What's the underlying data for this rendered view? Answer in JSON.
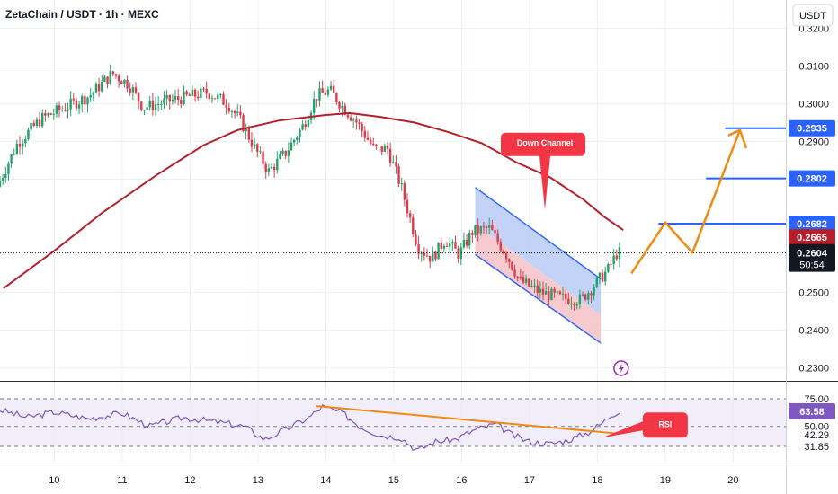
{
  "header": {
    "title": "ZetaChain / USDT · 1h · MEXC",
    "currency_button": "USDT"
  },
  "colors": {
    "background": "#ffffff",
    "grid": "#e7f3ec",
    "candle_up": "#22a26a",
    "candle_down": "#e0394a",
    "moving_average": "#b51f2b",
    "rsi_line": "#7e57c2",
    "rsi_band_fill": "#ede7f6",
    "target_line": "#2962ff",
    "annotation_orange": "#f08a12",
    "callout_red": "#f23645",
    "channel_blue_fill": "#b3c8f5",
    "channel_red_fill": "#f4c1c6"
  },
  "chart_data": {
    "type": "candlestick",
    "symbol": "ZetaChain / USDT",
    "interval": "1h",
    "exchange": "MEXC",
    "x_ticks": [
      "10",
      "11",
      "12",
      "13",
      "14",
      "15",
      "16",
      "17",
      "18",
      "19",
      "20"
    ],
    "y_ticks": [
      "0.3200",
      "0.3100",
      "0.3000",
      "0.2900",
      "0.2800",
      "0.2500",
      "0.2400",
      "0.2300"
    ],
    "ylim": [
      0.2265,
      0.3275
    ],
    "last_price": "0.2604",
    "countdown": "50:54",
    "ma_price": "0.2665",
    "close_path_approx": [
      {
        "x": 9.2,
        "y": 0.278
      },
      {
        "x": 9.5,
        "y": 0.2895
      },
      {
        "x": 9.85,
        "y": 0.296
      },
      {
        "x": 10.2,
        "y": 0.299
      },
      {
        "x": 10.55,
        "y": 0.302
      },
      {
        "x": 10.9,
        "y": 0.308
      },
      {
        "x": 11.15,
        "y": 0.305
      },
      {
        "x": 11.35,
        "y": 0.299
      },
      {
        "x": 11.8,
        "y": 0.301
      },
      {
        "x": 12.3,
        "y": 0.303
      },
      {
        "x": 12.6,
        "y": 0.3
      },
      {
        "x": 12.8,
        "y": 0.295
      },
      {
        "x": 13.0,
        "y": 0.288
      },
      {
        "x": 13.2,
        "y": 0.282
      },
      {
        "x": 13.45,
        "y": 0.287
      },
      {
        "x": 13.7,
        "y": 0.294
      },
      {
        "x": 13.9,
        "y": 0.302
      },
      {
        "x": 14.1,
        "y": 0.3035
      },
      {
        "x": 14.3,
        "y": 0.299
      },
      {
        "x": 14.5,
        "y": 0.295
      },
      {
        "x": 14.75,
        "y": 0.288
      },
      {
        "x": 14.95,
        "y": 0.288
      },
      {
        "x": 15.15,
        "y": 0.278
      },
      {
        "x": 15.4,
        "y": 0.262
      },
      {
        "x": 15.6,
        "y": 0.259
      },
      {
        "x": 15.8,
        "y": 0.264
      },
      {
        "x": 16.0,
        "y": 0.26
      },
      {
        "x": 16.2,
        "y": 0.266
      },
      {
        "x": 16.45,
        "y": 0.267
      },
      {
        "x": 16.7,
        "y": 0.26
      },
      {
        "x": 16.9,
        "y": 0.253
      },
      {
        "x": 17.2,
        "y": 0.25
      },
      {
        "x": 17.5,
        "y": 0.2485
      },
      {
        "x": 17.8,
        "y": 0.248
      },
      {
        "x": 18.0,
        "y": 0.252
      },
      {
        "x": 18.2,
        "y": 0.256
      },
      {
        "x": 18.33,
        "y": 0.2604
      }
    ],
    "moving_average_approx": [
      {
        "x": 9.25,
        "y": 0.251
      },
      {
        "x": 10.0,
        "y": 0.261
      },
      {
        "x": 10.7,
        "y": 0.271
      },
      {
        "x": 11.5,
        "y": 0.281
      },
      {
        "x": 12.2,
        "y": 0.289
      },
      {
        "x": 12.7,
        "y": 0.293
      },
      {
        "x": 13.3,
        "y": 0.2955
      },
      {
        "x": 14.0,
        "y": 0.297
      },
      {
        "x": 14.35,
        "y": 0.2975
      },
      {
        "x": 14.8,
        "y": 0.2965
      },
      {
        "x": 15.3,
        "y": 0.295
      },
      {
        "x": 15.8,
        "y": 0.2925
      },
      {
        "x": 16.3,
        "y": 0.2895
      },
      {
        "x": 16.8,
        "y": 0.2845
      },
      {
        "x": 17.3,
        "y": 0.2805
      },
      {
        "x": 17.8,
        "y": 0.2745
      },
      {
        "x": 18.1,
        "y": 0.27
      },
      {
        "x": 18.38,
        "y": 0.2665
      }
    ],
    "target_levels": [
      {
        "label": "0.2935",
        "price": 0.2935,
        "x_start": 19.88
      },
      {
        "label": "0.2802",
        "price": 0.2802,
        "x_start": 19.6
      },
      {
        "label": "0.2682",
        "price": 0.2682,
        "x_start": 18.9
      }
    ],
    "down_channel": {
      "label": "Down Channel",
      "upper": [
        [
          16.2,
          0.2778
        ],
        [
          18.05,
          0.2535
        ]
      ],
      "lower": [
        [
          16.2,
          0.26
        ],
        [
          18.05,
          0.2365
        ]
      ],
      "mid": [
        [
          16.2,
          0.268
        ],
        [
          18.05,
          0.244
        ]
      ]
    },
    "projection_path": [
      {
        "x": 18.5,
        "y": 0.255
      },
      {
        "x": 19.0,
        "y": 0.2685
      },
      {
        "x": 19.4,
        "y": 0.2605
      },
      {
        "x": 20.1,
        "y": 0.293
      }
    ],
    "rsi": {
      "label": "RSI",
      "levels": [
        "75.00",
        "63.58",
        "50.00",
        "42.29",
        "31.85"
      ],
      "current": "63.58",
      "trendline": [
        [
          13.85,
          68.5
        ],
        [
          18.3,
          43.5
        ]
      ],
      "path_approx": [
        {
          "x": 9.2,
          "y": 65
        },
        {
          "x": 9.6,
          "y": 58
        },
        {
          "x": 10.0,
          "y": 63
        },
        {
          "x": 10.5,
          "y": 57
        },
        {
          "x": 11.0,
          "y": 62
        },
        {
          "x": 11.4,
          "y": 50
        },
        {
          "x": 11.9,
          "y": 58
        },
        {
          "x": 12.4,
          "y": 54
        },
        {
          "x": 12.8,
          "y": 50
        },
        {
          "x": 13.1,
          "y": 38
        },
        {
          "x": 13.4,
          "y": 47
        },
        {
          "x": 13.75,
          "y": 58
        },
        {
          "x": 13.95,
          "y": 68
        },
        {
          "x": 14.25,
          "y": 62
        },
        {
          "x": 14.5,
          "y": 50
        },
        {
          "x": 14.8,
          "y": 42
        },
        {
          "x": 15.1,
          "y": 40
        },
        {
          "x": 15.35,
          "y": 28
        },
        {
          "x": 15.6,
          "y": 36
        },
        {
          "x": 15.9,
          "y": 38
        },
        {
          "x": 16.2,
          "y": 47
        },
        {
          "x": 16.5,
          "y": 52
        },
        {
          "x": 16.75,
          "y": 42
        },
        {
          "x": 17.0,
          "y": 36
        },
        {
          "x": 17.3,
          "y": 34
        },
        {
          "x": 17.6,
          "y": 38
        },
        {
          "x": 17.85,
          "y": 44
        },
        {
          "x": 18.05,
          "y": 52
        },
        {
          "x": 18.2,
          "y": 60
        },
        {
          "x": 18.35,
          "y": 65
        }
      ]
    }
  }
}
